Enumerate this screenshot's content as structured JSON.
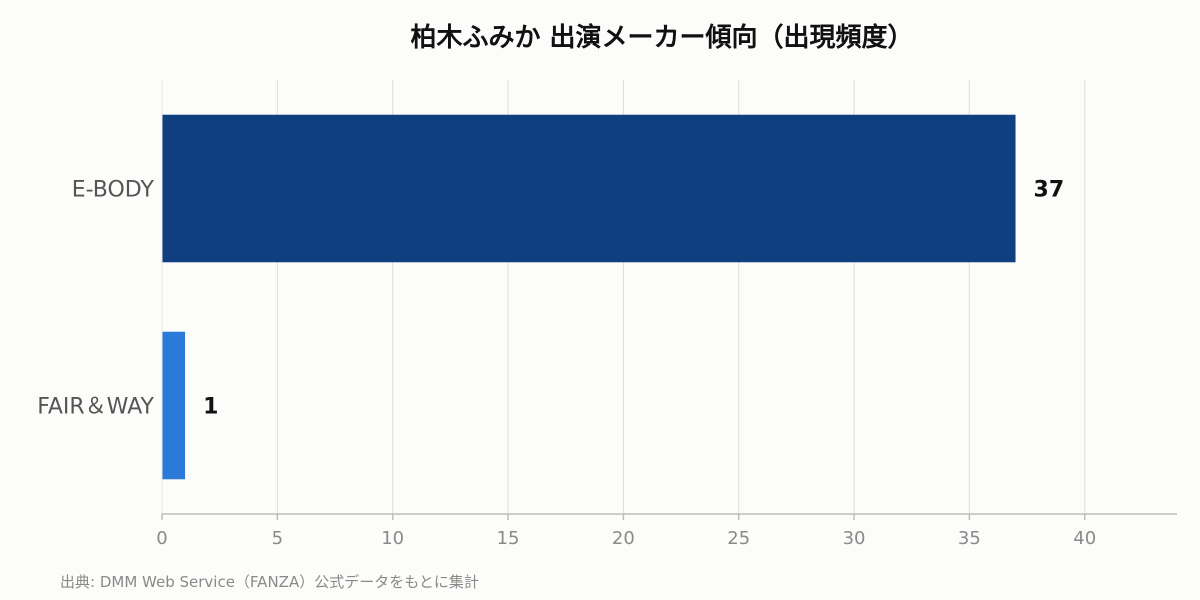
{
  "chart_data": {
    "type": "bar",
    "orientation": "horizontal",
    "title": "柏木ふみか 出演メーカー傾向（出現頻度）",
    "categories": [
      "E-BODY",
      "FAIR＆WAY"
    ],
    "values": [
      37,
      1
    ],
    "bar_colors": [
      "#103f80",
      "#2b7ad8"
    ],
    "xlim": [
      0,
      44
    ],
    "xticks": [
      0,
      5,
      10,
      15,
      20,
      25,
      30,
      35,
      40
    ],
    "grid": true,
    "source": "出典: DMM Web Service（FANZA）公式データをもとに集計"
  }
}
